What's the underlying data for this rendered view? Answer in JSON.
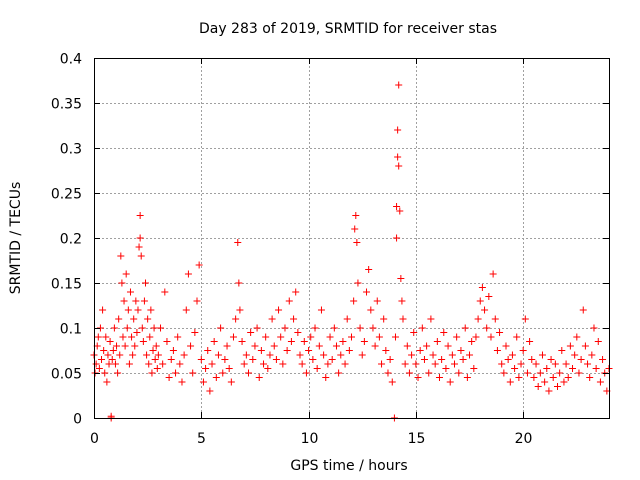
{
  "chart_data": {
    "type": "scatter",
    "title": "Day 283 of 2019, SRMTID for receiver stas",
    "xlabel": "GPS time / hours",
    "ylabel": "SRMTID / TECUs",
    "xlim": [
      0,
      24
    ],
    "ylim": [
      0,
      0.4
    ],
    "x_ticks": [
      0,
      5,
      10,
      15,
      20
    ],
    "x_tick_labels": [
      "0",
      "5",
      "10",
      "15",
      "20"
    ],
    "y_ticks": [
      0,
      0.05,
      0.1,
      0.15,
      0.2,
      0.25,
      0.3,
      0.35,
      0.4
    ],
    "y_tick_labels": [
      "0",
      "0.05",
      "0.1",
      "0.15",
      "0.2",
      "0.25",
      "0.3",
      "0.35",
      "0.4"
    ],
    "grid": true,
    "marker": "plus",
    "color": "#ff0000",
    "series": [
      {
        "name": "stas",
        "points": [
          [
            0.0,
            0.07
          ],
          [
            0.05,
            0.05
          ],
          [
            0.1,
            0.06
          ],
          [
            0.15,
            0.08
          ],
          [
            0.2,
            0.09
          ],
          [
            0.25,
            0.055
          ],
          [
            0.3,
            0.1
          ],
          [
            0.35,
            0.065
          ],
          [
            0.4,
            0.12
          ],
          [
            0.45,
            0.075
          ],
          [
            0.5,
            0.05
          ],
          [
            0.55,
            0.09
          ],
          [
            0.6,
            0.04
          ],
          [
            0.65,
            0.07
          ],
          [
            0.7,
            0.06
          ],
          [
            0.75,
            0.085
          ],
          [
            0.8,
            0.0
          ],
          [
            0.8,
            0.002
          ],
          [
            0.85,
            0.065
          ],
          [
            0.9,
            0.075
          ],
          [
            0.95,
            0.1
          ],
          [
            1.0,
            0.06
          ],
          [
            1.05,
            0.08
          ],
          [
            1.1,
            0.05
          ],
          [
            1.15,
            0.11
          ],
          [
            1.2,
            0.07
          ],
          [
            1.25,
            0.18
          ],
          [
            1.3,
            0.15
          ],
          [
            1.35,
            0.09
          ],
          [
            1.4,
            0.13
          ],
          [
            1.45,
            0.08
          ],
          [
            1.5,
            0.16
          ],
          [
            1.55,
            0.1
          ],
          [
            1.6,
            0.12
          ],
          [
            1.65,
            0.06
          ],
          [
            1.7,
            0.14
          ],
          [
            1.75,
            0.09
          ],
          [
            1.8,
            0.07
          ],
          [
            1.85,
            0.11
          ],
          [
            1.9,
            0.08
          ],
          [
            1.95,
            0.13
          ],
          [
            2.0,
            0.095
          ],
          [
            2.05,
            0.12
          ],
          [
            2.1,
            0.19
          ],
          [
            2.15,
            0.2
          ],
          [
            2.15,
            0.225
          ],
          [
            2.2,
            0.18
          ],
          [
            2.25,
            0.1
          ],
          [
            2.3,
            0.085
          ],
          [
            2.35,
            0.13
          ],
          [
            2.4,
            0.15
          ],
          [
            2.45,
            0.07
          ],
          [
            2.5,
            0.11
          ],
          [
            2.55,
            0.06
          ],
          [
            2.6,
            0.09
          ],
          [
            2.65,
            0.12
          ],
          [
            2.7,
            0.05
          ],
          [
            2.75,
            0.075
          ],
          [
            2.8,
            0.1
          ],
          [
            2.85,
            0.065
          ],
          [
            2.9,
            0.08
          ],
          [
            2.95,
            0.055
          ],
          [
            3.0,
            0.07
          ],
          [
            3.1,
            0.1
          ],
          [
            3.2,
            0.06
          ],
          [
            3.3,
            0.14
          ],
          [
            3.4,
            0.085
          ],
          [
            3.5,
            0.045
          ],
          [
            3.6,
            0.065
          ],
          [
            3.7,
            0.075
          ],
          [
            3.8,
            0.05
          ],
          [
            3.9,
            0.09
          ],
          [
            4.0,
            0.06
          ],
          [
            4.1,
            0.04
          ],
          [
            4.2,
            0.07
          ],
          [
            4.3,
            0.12
          ],
          [
            4.4,
            0.16
          ],
          [
            4.5,
            0.08
          ],
          [
            4.6,
            0.05
          ],
          [
            4.7,
            0.095
          ],
          [
            4.8,
            0.13
          ],
          [
            4.9,
            0.17
          ],
          [
            5.0,
            0.065
          ],
          [
            5.1,
            0.04
          ],
          [
            5.2,
            0.055
          ],
          [
            5.3,
            0.075
          ],
          [
            5.4,
            0.03
          ],
          [
            5.5,
            0.06
          ],
          [
            5.6,
            0.085
          ],
          [
            5.7,
            0.045
          ],
          [
            5.8,
            0.07
          ],
          [
            5.9,
            0.1
          ],
          [
            6.0,
            0.05
          ],
          [
            6.1,
            0.065
          ],
          [
            6.2,
            0.08
          ],
          [
            6.3,
            0.055
          ],
          [
            6.4,
            0.04
          ],
          [
            6.5,
            0.09
          ],
          [
            6.6,
            0.11
          ],
          [
            6.7,
            0.195
          ],
          [
            6.75,
            0.15
          ],
          [
            6.8,
            0.12
          ],
          [
            6.9,
            0.085
          ],
          [
            7.0,
            0.06
          ],
          [
            7.1,
            0.07
          ],
          [
            7.2,
            0.05
          ],
          [
            7.3,
            0.095
          ],
          [
            7.4,
            0.065
          ],
          [
            7.5,
            0.08
          ],
          [
            7.6,
            0.1
          ],
          [
            7.7,
            0.045
          ],
          [
            7.8,
            0.075
          ],
          [
            7.9,
            0.06
          ],
          [
            8.0,
            0.09
          ],
          [
            8.1,
            0.055
          ],
          [
            8.2,
            0.07
          ],
          [
            8.3,
            0.11
          ],
          [
            8.4,
            0.08
          ],
          [
            8.5,
            0.065
          ],
          [
            8.6,
            0.12
          ],
          [
            8.7,
            0.09
          ],
          [
            8.8,
            0.06
          ],
          [
            8.9,
            0.1
          ],
          [
            9.0,
            0.075
          ],
          [
            9.1,
            0.13
          ],
          [
            9.2,
            0.085
          ],
          [
            9.3,
            0.11
          ],
          [
            9.4,
            0.14
          ],
          [
            9.5,
            0.095
          ],
          [
            9.6,
            0.07
          ],
          [
            9.7,
            0.06
          ],
          [
            9.8,
            0.085
          ],
          [
            9.9,
            0.05
          ],
          [
            10.0,
            0.075
          ],
          [
            10.1,
            0.09
          ],
          [
            10.2,
            0.065
          ],
          [
            10.3,
            0.1
          ],
          [
            10.4,
            0.055
          ],
          [
            10.5,
            0.08
          ],
          [
            10.6,
            0.12
          ],
          [
            10.7,
            0.07
          ],
          [
            10.8,
            0.045
          ],
          [
            10.9,
            0.06
          ],
          [
            11.0,
            0.09
          ],
          [
            11.1,
            0.065
          ],
          [
            11.2,
            0.1
          ],
          [
            11.3,
            0.08
          ],
          [
            11.4,
            0.05
          ],
          [
            11.5,
            0.07
          ],
          [
            11.6,
            0.085
          ],
          [
            11.7,
            0.06
          ],
          [
            11.8,
            0.11
          ],
          [
            11.9,
            0.075
          ],
          [
            12.0,
            0.09
          ],
          [
            12.1,
            0.13
          ],
          [
            12.15,
            0.21
          ],
          [
            12.2,
            0.225
          ],
          [
            12.25,
            0.195
          ],
          [
            12.3,
            0.15
          ],
          [
            12.4,
            0.1
          ],
          [
            12.5,
            0.07
          ],
          [
            12.6,
            0.085
          ],
          [
            12.7,
            0.14
          ],
          [
            12.8,
            0.165
          ],
          [
            12.9,
            0.12
          ],
          [
            13.0,
            0.1
          ],
          [
            13.1,
            0.08
          ],
          [
            13.2,
            0.13
          ],
          [
            13.3,
            0.09
          ],
          [
            13.4,
            0.06
          ],
          [
            13.5,
            0.11
          ],
          [
            13.6,
            0.075
          ],
          [
            13.7,
            0.05
          ],
          [
            13.8,
            0.065
          ],
          [
            13.9,
            0.04
          ],
          [
            14.0,
            0.0
          ],
          [
            14.05,
            0.09
          ],
          [
            14.1,
            0.2
          ],
          [
            14.1,
            0.235
          ],
          [
            14.15,
            0.29
          ],
          [
            14.15,
            0.32
          ],
          [
            14.2,
            0.37
          ],
          [
            14.2,
            0.28
          ],
          [
            14.25,
            0.23
          ],
          [
            14.3,
            0.155
          ],
          [
            14.35,
            0.13
          ],
          [
            14.4,
            0.11
          ],
          [
            14.5,
            0.06
          ],
          [
            14.6,
            0.08
          ],
          [
            14.7,
            0.05
          ],
          [
            14.8,
            0.07
          ],
          [
            14.9,
            0.095
          ],
          [
            15.0,
            0.06
          ],
          [
            15.1,
            0.045
          ],
          [
            15.2,
            0.075
          ],
          [
            15.3,
            0.1
          ],
          [
            15.4,
            0.065
          ],
          [
            15.5,
            0.08
          ],
          [
            15.6,
            0.05
          ],
          [
            15.7,
            0.11
          ],
          [
            15.8,
            0.07
          ],
          [
            15.9,
            0.06
          ],
          [
            16.0,
            0.085
          ],
          [
            16.1,
            0.045
          ],
          [
            16.2,
            0.065
          ],
          [
            16.3,
            0.095
          ],
          [
            16.4,
            0.055
          ],
          [
            16.5,
            0.08
          ],
          [
            16.6,
            0.04
          ],
          [
            16.7,
            0.07
          ],
          [
            16.8,
            0.06
          ],
          [
            16.9,
            0.09
          ],
          [
            17.0,
            0.05
          ],
          [
            17.1,
            0.075
          ],
          [
            17.2,
            0.065
          ],
          [
            17.3,
            0.1
          ],
          [
            17.4,
            0.045
          ],
          [
            17.5,
            0.07
          ],
          [
            17.6,
            0.085
          ],
          [
            17.7,
            0.055
          ],
          [
            17.8,
            0.09
          ],
          [
            17.9,
            0.11
          ],
          [
            18.0,
            0.13
          ],
          [
            18.1,
            0.145
          ],
          [
            18.2,
            0.12
          ],
          [
            18.3,
            0.1
          ],
          [
            18.4,
            0.135
          ],
          [
            18.5,
            0.09
          ],
          [
            18.6,
            0.16
          ],
          [
            18.7,
            0.11
          ],
          [
            18.8,
            0.075
          ],
          [
            18.9,
            0.095
          ],
          [
            19.0,
            0.06
          ],
          [
            19.1,
            0.05
          ],
          [
            19.2,
            0.08
          ],
          [
            19.3,
            0.065
          ],
          [
            19.4,
            0.04
          ],
          [
            19.5,
            0.07
          ],
          [
            19.6,
            0.055
          ],
          [
            19.7,
            0.09
          ],
          [
            19.8,
            0.045
          ],
          [
            19.9,
            0.06
          ],
          [
            20.0,
            0.075
          ],
          [
            20.1,
            0.11
          ],
          [
            20.2,
            0.05
          ],
          [
            20.3,
            0.085
          ],
          [
            20.4,
            0.065
          ],
          [
            20.5,
            0.045
          ],
          [
            20.6,
            0.06
          ],
          [
            20.7,
            0.035
          ],
          [
            20.8,
            0.05
          ],
          [
            20.9,
            0.07
          ],
          [
            21.0,
            0.04
          ],
          [
            21.1,
            0.055
          ],
          [
            21.2,
            0.03
          ],
          [
            21.3,
            0.065
          ],
          [
            21.4,
            0.045
          ],
          [
            21.5,
            0.06
          ],
          [
            21.6,
            0.035
          ],
          [
            21.7,
            0.05
          ],
          [
            21.8,
            0.075
          ],
          [
            21.9,
            0.04
          ],
          [
            22.0,
            0.06
          ],
          [
            22.1,
            0.045
          ],
          [
            22.2,
            0.08
          ],
          [
            22.3,
            0.055
          ],
          [
            22.4,
            0.07
          ],
          [
            22.5,
            0.09
          ],
          [
            22.6,
            0.05
          ],
          [
            22.7,
            0.065
          ],
          [
            22.8,
            0.12
          ],
          [
            22.9,
            0.08
          ],
          [
            23.0,
            0.06
          ],
          [
            23.1,
            0.045
          ],
          [
            23.2,
            0.07
          ],
          [
            23.3,
            0.1
          ],
          [
            23.4,
            0.055
          ],
          [
            23.5,
            0.085
          ],
          [
            23.6,
            0.04
          ],
          [
            23.7,
            0.065
          ],
          [
            23.8,
            0.05
          ],
          [
            23.9,
            0.03
          ],
          [
            24.0,
            0.055
          ]
        ]
      }
    ]
  }
}
